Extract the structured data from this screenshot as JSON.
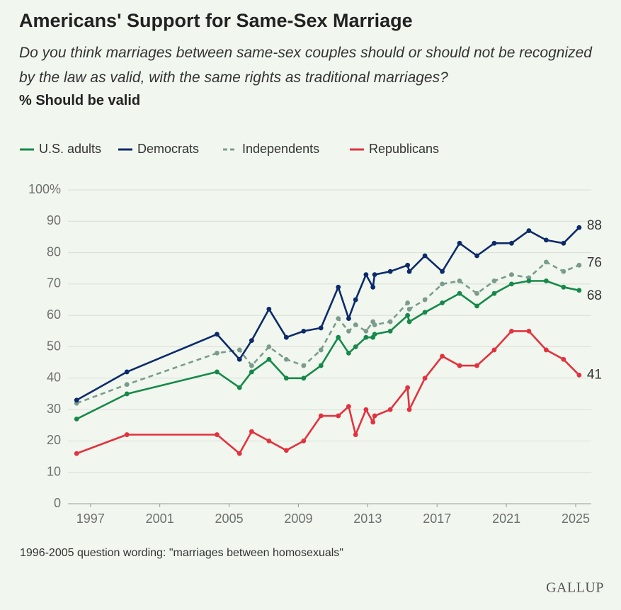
{
  "chart_data": {
    "type": "line",
    "title": "Americans' Support for Same-Sex Marriage",
    "subtitle": "Do you think marriages between same-sex couples should or should not be recognized by the law as valid, with the same rights as traditional marriages?",
    "y_label": "% Should be valid",
    "note": "1996-2005 question wording: \"marriages between homosexuals\"",
    "source": "GALLUP",
    "x": [
      1996.2,
      1999.1,
      2004.3,
      2005.6,
      2006.3,
      2007.3,
      2008.3,
      2009.3,
      2010.3,
      2011.3,
      2011.9,
      2012.3,
      2012.9,
      2013.3,
      2013.4,
      2014.3,
      2015.3,
      2015.4,
      2016.3,
      2017.3,
      2018.3,
      2019.3,
      2020.3,
      2021.3,
      2022.3,
      2023.3,
      2024.3,
      2025.2
    ],
    "series": [
      {
        "name": "U.S. adults",
        "color": "#16894a",
        "dashed": false,
        "values": [
          27,
          35,
          42,
          37,
          42,
          46,
          40,
          40,
          44,
          53,
          48,
          50,
          53,
          53,
          54,
          55,
          60,
          58,
          61,
          64,
          67,
          63,
          67,
          70,
          71,
          71,
          69,
          68
        ]
      },
      {
        "name": "Democrats",
        "color": "#0d2a6a",
        "dashed": false,
        "values": [
          33,
          42,
          54,
          46,
          52,
          62,
          53,
          55,
          56,
          69,
          59,
          65,
          73,
          69,
          73,
          74,
          76,
          74,
          79,
          74,
          83,
          79,
          83,
          83,
          87,
          84,
          83,
          88
        ]
      },
      {
        "name": "Independents",
        "color": "#7b9c8d",
        "dashed": true,
        "values": [
          32,
          38,
          48,
          49,
          44,
          50,
          46,
          44,
          49,
          59,
          55,
          57,
          55,
          58,
          57,
          58,
          64,
          62,
          65,
          70,
          71,
          67,
          71,
          73,
          72,
          77,
          74,
          76
        ]
      },
      {
        "name": "Republicans",
        "color": "#e3323f",
        "dashed": false,
        "values": [
          16,
          22,
          22,
          16,
          23,
          20,
          17,
          20,
          28,
          28,
          31,
          22,
          30,
          26,
          28,
          30,
          37,
          30,
          40,
          47,
          44,
          44,
          49,
          55,
          55,
          49,
          46,
          41
        ]
      }
    ],
    "xlim": [
      1995.7,
      2025.9
    ],
    "xticks": [
      1997,
      2001,
      2005,
      2009,
      2013,
      2017,
      2021,
      2025
    ],
    "ylim": [
      0,
      100
    ],
    "yticks": [
      0,
      10,
      20,
      30,
      40,
      50,
      60,
      70,
      80,
      90,
      {
        "value": 100,
        "label": "100%"
      }
    ],
    "grid": true,
    "legend": "top"
  }
}
